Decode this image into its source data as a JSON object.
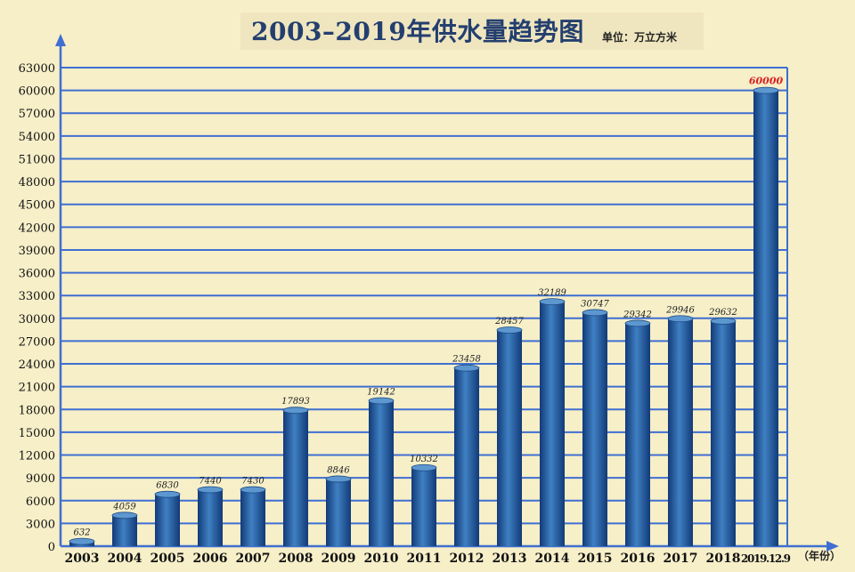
{
  "page": {
    "title": "2003–2019年供水量趋势图",
    "unit": "单位：万立方米",
    "x_unit": "（年份）"
  },
  "colors": {
    "background": "#f7efc8",
    "grid": "#3f6fd1",
    "bar_dark": "#123a78",
    "bar_light": "#3f80c2",
    "highlight_label": "#d92020"
  },
  "chart_data": {
    "type": "bar",
    "title": "2003–2019年供水量趋势图",
    "ylabel": "单位：万立方米",
    "xlabel": "（年份）",
    "categories": [
      "2003",
      "2004",
      "2005",
      "2006",
      "2007",
      "2008",
      "2009",
      "2010",
      "2011",
      "2012",
      "2013",
      "2014",
      "2015",
      "2016",
      "2017",
      "2018",
      "2019.12.9"
    ],
    "values": [
      632,
      4059,
      6830,
      7440,
      7430,
      17893,
      8846,
      19142,
      10332,
      23458,
      28457,
      32189,
      30747,
      29342,
      29946,
      29632,
      60000
    ],
    "value_labels": [
      "632",
      "4059",
      "6830",
      "7440",
      "7430",
      "17893",
      "8846",
      "19142",
      "10332",
      "23458",
      "28457",
      "32189",
      "30747",
      "29342",
      "29946",
      "29632",
      "60000"
    ],
    "highlight_index": 16,
    "ylim": [
      0,
      63000
    ],
    "yticks": [
      0,
      3000,
      6000,
      9000,
      12000,
      15000,
      18000,
      21000,
      24000,
      27000,
      30000,
      33000,
      36000,
      39000,
      42000,
      45000,
      48000,
      51000,
      54000,
      57000,
      60000,
      63000
    ],
    "grid": true,
    "legend": "none"
  }
}
